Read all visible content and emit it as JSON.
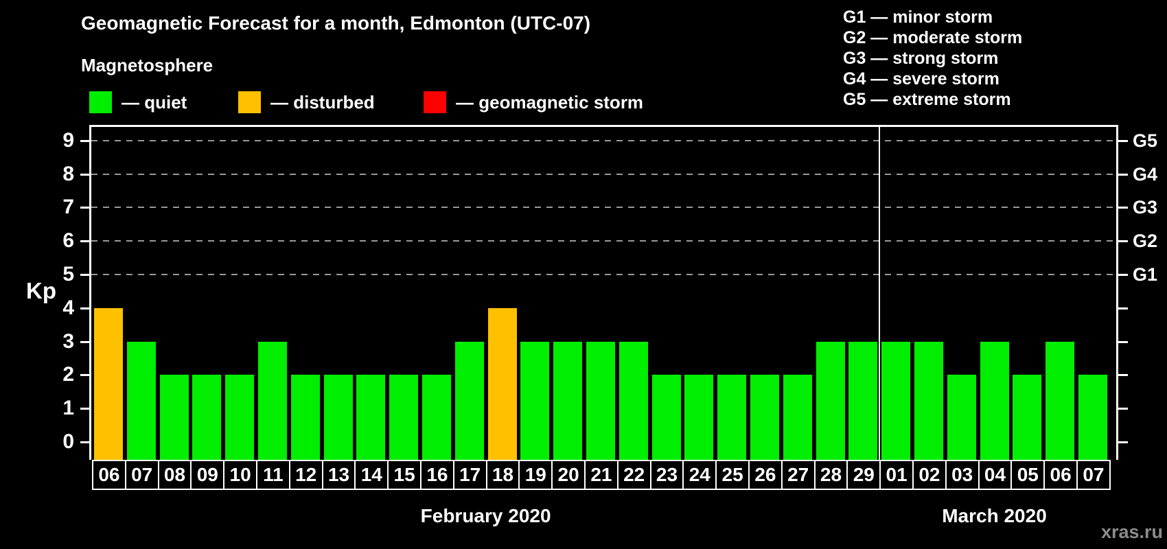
{
  "header": {
    "title": "Geomagnetic Forecast for a month, Edmonton (UTC-07)",
    "subtitle": "Magnetosphere"
  },
  "legend": {
    "items": [
      {
        "name": "quiet",
        "label": "— quiet",
        "color": "#00ee00"
      },
      {
        "name": "disturbed",
        "label": "— disturbed",
        "color": "#ffc000"
      },
      {
        "name": "storm",
        "label": "— geomagnetic storm",
        "color": "#ff0000"
      }
    ]
  },
  "g_legend": {
    "lines": [
      "G1 — minor storm",
      "G2 — moderate storm",
      "G3 — strong storm",
      "G4 — severe storm",
      "G5 — extreme storm"
    ]
  },
  "watermark": "xras.ru",
  "chart_data": {
    "type": "bar",
    "title": "Geomagnetic Forecast for a month, Edmonton (UTC-07)",
    "ylabel": "Kp",
    "ylim": [
      0,
      9
    ],
    "yticks": [
      0,
      1,
      2,
      3,
      4,
      5,
      6,
      7,
      8,
      9
    ],
    "gridlines_at": [
      5,
      6,
      7,
      8,
      9
    ],
    "grid": "dashed, only at storm levels 5-9",
    "legend_position": "top",
    "right_axis": [
      {
        "value": 5,
        "label": "G1"
      },
      {
        "value": 6,
        "label": "G2"
      },
      {
        "value": 7,
        "label": "G3"
      },
      {
        "value": 8,
        "label": "G4"
      },
      {
        "value": 9,
        "label": "G5"
      }
    ],
    "status_colors": {
      "quiet": "#00ee00",
      "disturbed": "#ffc000",
      "storm": "#ff0000"
    },
    "groups": [
      {
        "month": "February 2020",
        "points": [
          {
            "day": "06",
            "kp": 4,
            "status": "disturbed"
          },
          {
            "day": "07",
            "kp": 3,
            "status": "quiet"
          },
          {
            "day": "08",
            "kp": 2,
            "status": "quiet"
          },
          {
            "day": "09",
            "kp": 2,
            "status": "quiet"
          },
          {
            "day": "10",
            "kp": 2,
            "status": "quiet"
          },
          {
            "day": "11",
            "kp": 3,
            "status": "quiet"
          },
          {
            "day": "12",
            "kp": 2,
            "status": "quiet"
          },
          {
            "day": "13",
            "kp": 2,
            "status": "quiet"
          },
          {
            "day": "14",
            "kp": 2,
            "status": "quiet"
          },
          {
            "day": "15",
            "kp": 2,
            "status": "quiet"
          },
          {
            "day": "16",
            "kp": 2,
            "status": "quiet"
          },
          {
            "day": "17",
            "kp": 3,
            "status": "quiet"
          },
          {
            "day": "18",
            "kp": 4,
            "status": "disturbed"
          },
          {
            "day": "19",
            "kp": 3,
            "status": "quiet"
          },
          {
            "day": "20",
            "kp": 3,
            "status": "quiet"
          },
          {
            "day": "21",
            "kp": 3,
            "status": "quiet"
          },
          {
            "day": "22",
            "kp": 3,
            "status": "quiet"
          },
          {
            "day": "23",
            "kp": 2,
            "status": "quiet"
          },
          {
            "day": "24",
            "kp": 2,
            "status": "quiet"
          },
          {
            "day": "25",
            "kp": 2,
            "status": "quiet"
          },
          {
            "day": "26",
            "kp": 2,
            "status": "quiet"
          },
          {
            "day": "27",
            "kp": 2,
            "status": "quiet"
          },
          {
            "day": "28",
            "kp": 3,
            "status": "quiet"
          },
          {
            "day": "29",
            "kp": 3,
            "status": "quiet"
          }
        ]
      },
      {
        "month": "March 2020",
        "points": [
          {
            "day": "01",
            "kp": 3,
            "status": "quiet"
          },
          {
            "day": "02",
            "kp": 3,
            "status": "quiet"
          },
          {
            "day": "03",
            "kp": 2,
            "status": "quiet"
          },
          {
            "day": "04",
            "kp": 3,
            "status": "quiet"
          },
          {
            "day": "05",
            "kp": 2,
            "status": "quiet"
          },
          {
            "day": "06",
            "kp": 3,
            "status": "quiet"
          },
          {
            "day": "07",
            "kp": 2,
            "status": "quiet"
          }
        ]
      }
    ]
  }
}
